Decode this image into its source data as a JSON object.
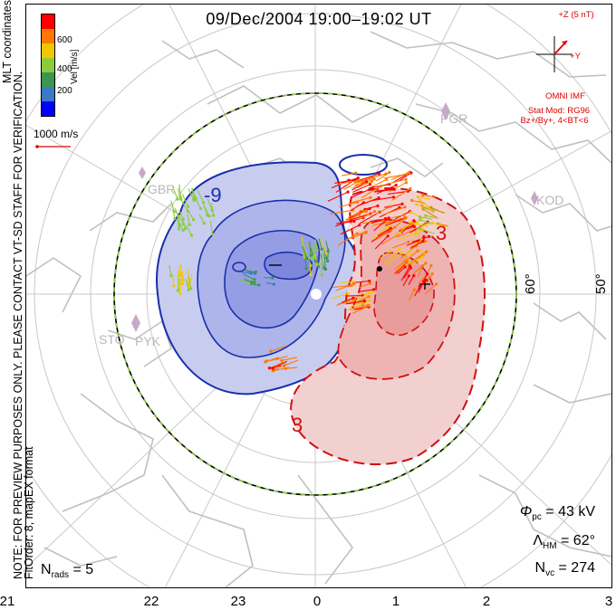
{
  "title": "09/Dec/2004 19:00–19:02 UT",
  "side_note": {
    "line1": "NOTE: FOR PREVIEW PURPOSES ONLY. PLEASE CONTACT VT-SD STAFF FOR VERIFICATION.",
    "line2": "FitOrder: 8, mapEX format",
    "coord_label": "MLT coordinates"
  },
  "colorbar": {
    "label": "Vel [m/s]",
    "ticks": [
      "600",
      "400",
      "200"
    ],
    "colors": [
      "#0000ff",
      "#3c78c8",
      "#3c9650",
      "#8ccc3c",
      "#f0c800",
      "#ff7800",
      "#ff0000"
    ]
  },
  "reference_vector": {
    "label": "1000 m/s",
    "color": "#e00000"
  },
  "imf": {
    "axis_z": "+Z (5 nT)",
    "axis_y": "+Y",
    "source": "OMNI IMF",
    "model": "Stat Mod: RG96",
    "condition": "Bz+/By+, 4<BT<6",
    "color": "#e00000"
  },
  "stats": {
    "phi_pc": "43 kV",
    "lambda_hm": "62°",
    "n_vc": "274",
    "n_rads": "5"
  },
  "latitude_labels": [
    "60°",
    "50°"
  ],
  "mlt_labels": [
    "21",
    "22",
    "23",
    "0",
    "1",
    "2",
    "3"
  ],
  "stations": [
    "PGR",
    "KOD",
    "GBR",
    "STO",
    "PYK"
  ],
  "contours": {
    "negative_label": "-9",
    "positive_label": "3",
    "negative_color": "#1a2faa",
    "positive_color": "#d01010",
    "negative_fill": "#c8cdf0",
    "positive_fill": "#f2c4c4"
  }
}
